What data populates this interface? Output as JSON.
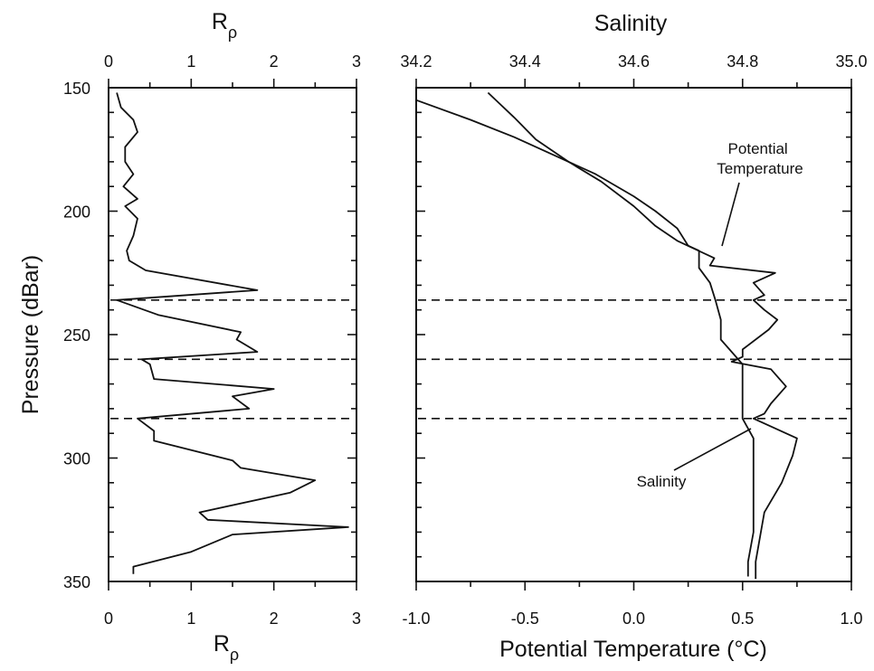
{
  "chart_data": {
    "type": "line",
    "y_axis": {
      "label": "Pressure (dBar)",
      "range": [
        150,
        350
      ],
      "inverted": true,
      "ticks": [
        150,
        200,
        250,
        300,
        350
      ],
      "tick_labels": [
        "150",
        "200",
        "250",
        "300",
        "350"
      ]
    },
    "dashed_lines_pressure": [
      236,
      260,
      284
    ],
    "panels": [
      {
        "id": "rrho",
        "x_axis": {
          "label_top": "R",
          "label_top_sub": "ρ",
          "label_bottom": "R",
          "label_bottom_sub": "ρ",
          "range": [
            0,
            3
          ],
          "ticks": [
            0,
            1,
            2,
            3
          ],
          "tick_labels": [
            "0",
            "1",
            "2",
            "3"
          ],
          "minor_step": 0.5
        },
        "series": [
          {
            "points": [
              [
                0.1,
                152
              ],
              [
                0.15,
                158
              ],
              [
                0.3,
                163
              ],
              [
                0.35,
                168
              ],
              [
                0.2,
                174
              ],
              [
                0.2,
                180
              ],
              [
                0.3,
                185
              ],
              [
                0.18,
                190
              ],
              [
                0.35,
                195
              ],
              [
                0.2,
                198
              ],
              [
                0.35,
                203
              ],
              [
                0.3,
                210
              ],
              [
                0.22,
                216
              ],
              [
                0.25,
                220
              ],
              [
                0.45,
                224
              ],
              [
                1.8,
                232
              ],
              [
                0.1,
                236
              ],
              [
                0.6,
                242
              ],
              [
                1.6,
                249
              ],
              [
                1.55,
                252
              ],
              [
                1.8,
                257
              ],
              [
                0.4,
                260
              ],
              [
                0.5,
                262
              ],
              [
                0.55,
                268
              ],
              [
                2.0,
                272
              ],
              [
                1.5,
                275
              ],
              [
                1.7,
                280
              ],
              [
                0.35,
                284
              ],
              [
                0.55,
                289
              ],
              [
                0.55,
                293
              ],
              [
                1.5,
                301
              ],
              [
                1.6,
                304
              ],
              [
                2.5,
                309
              ],
              [
                2.2,
                314
              ],
              [
                1.1,
                322
              ],
              [
                1.2,
                325
              ],
              [
                2.9,
                328
              ],
              [
                1.5,
                331
              ],
              [
                1.0,
                338
              ],
              [
                0.3,
                344
              ],
              [
                0.3,
                347
              ]
            ]
          }
        ]
      },
      {
        "id": "salinity_theta",
        "x_axis_top": {
          "label": "Salinity",
          "range": [
            34.2,
            35.0
          ],
          "ticks": [
            34.2,
            34.4,
            34.6,
            34.8,
            35.0
          ],
          "tick_labels": [
            "34.2",
            "34.4",
            "34.6",
            "34.8",
            "35.0"
          ],
          "minor_step": 0.1
        },
        "x_axis_bottom": {
          "label": "Potential Temperature (°C)",
          "range": [
            -1.0,
            1.0
          ],
          "ticks": [
            -1.0,
            -0.5,
            0.0,
            0.5,
            1.0
          ],
          "tick_labels": [
            "-1.0",
            "-0.5",
            "0.0",
            "0.5",
            "1.0"
          ],
          "minor_step": 0.25
        },
        "series": [
          {
            "name": "Salinity",
            "axis": "top",
            "points": [
              [
                34.2,
                155
              ],
              [
                34.3,
                163
              ],
              [
                34.38,
                170
              ],
              [
                34.45,
                177
              ],
              [
                34.53,
                185
              ],
              [
                34.6,
                194
              ],
              [
                34.64,
                200
              ],
              [
                34.68,
                207
              ],
              [
                34.7,
                214
              ],
              [
                34.72,
                216
              ],
              [
                34.72,
                223
              ],
              [
                34.74,
                229
              ],
              [
                34.75,
                236
              ],
              [
                34.76,
                244
              ],
              [
                34.76,
                252
              ],
              [
                34.78,
                257
              ],
              [
                34.8,
                262
              ],
              [
                34.8,
                270
              ],
              [
                34.8,
                277
              ],
              [
                34.8,
                284
              ],
              [
                34.82,
                292
              ],
              [
                34.82,
                305
              ],
              [
                34.82,
                318
              ],
              [
                34.82,
                330
              ],
              [
                34.81,
                342
              ],
              [
                34.81,
                348
              ]
            ]
          },
          {
            "name": "Potential Temperature",
            "axis": "bottom",
            "points": [
              [
                -0.67,
                152
              ],
              [
                -0.55,
                162
              ],
              [
                -0.45,
                171
              ],
              [
                -0.3,
                180
              ],
              [
                -0.15,
                188
              ],
              [
                0.0,
                198
              ],
              [
                0.1,
                206
              ],
              [
                0.2,
                212
              ],
              [
                0.37,
                219
              ],
              [
                0.35,
                222
              ],
              [
                0.65,
                225
              ],
              [
                0.55,
                229
              ],
              [
                0.6,
                234
              ],
              [
                0.55,
                236
              ],
              [
                0.6,
                240
              ],
              [
                0.66,
                244
              ],
              [
                0.62,
                248
              ],
              [
                0.5,
                256
              ],
              [
                0.5,
                259
              ],
              [
                0.45,
                261
              ],
              [
                0.63,
                264
              ],
              [
                0.7,
                271
              ],
              [
                0.63,
                278
              ],
              [
                0.6,
                282
              ],
              [
                0.55,
                284
              ],
              [
                0.75,
                292
              ],
              [
                0.73,
                299
              ],
              [
                0.68,
                310
              ],
              [
                0.6,
                322
              ],
              [
                0.58,
                332
              ],
              [
                0.56,
                342
              ],
              [
                0.56,
                349
              ]
            ]
          }
        ],
        "annotations": [
          {
            "lines": [
              "Potential",
              "Temperature"
            ]
          },
          {
            "lines": [
              "Salinity"
            ]
          }
        ]
      }
    ]
  }
}
